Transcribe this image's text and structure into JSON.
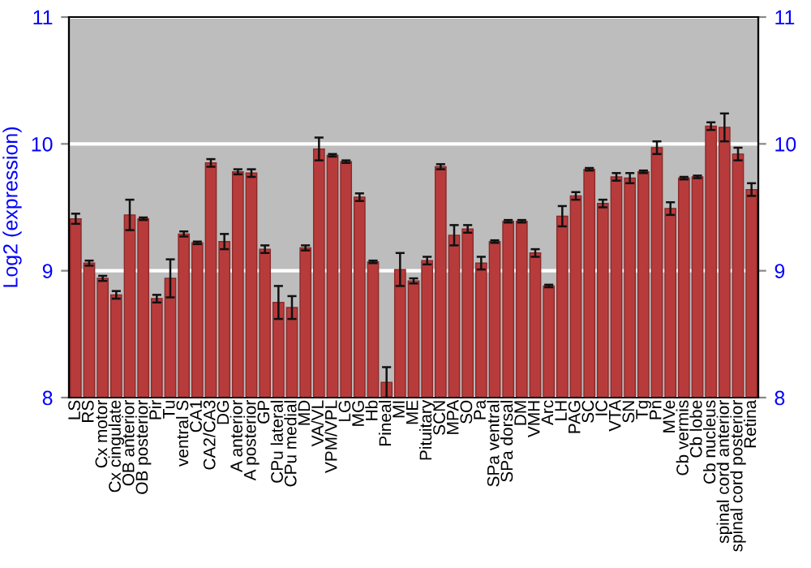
{
  "chart_data": {
    "type": "bar",
    "ylabel": "Log2 (expression)",
    "categories": [
      "LS",
      "RS",
      "Cx motor",
      "Cx cingulate",
      "OB anterior",
      "OB posterior",
      "Pir",
      "Tu",
      "ventral S",
      "CA1",
      "CA2/CA3",
      "DG",
      "A anterior",
      "A posterior",
      "GP",
      "CPu lateral",
      "CPu medial",
      "MD",
      "VA/VL",
      "VPM/VPL",
      "LG",
      "MG",
      "Hb",
      "Pineal",
      "MI",
      "ME",
      "Pituitary",
      "SCN",
      "MPA",
      "SO",
      "Pa",
      "SPa ventral",
      "SPa dorsal",
      "DM",
      "VMH",
      "Arc",
      "LH",
      "PAG",
      "SC",
      "IC",
      "VTA",
      "SN",
      "Tg",
      "Pn",
      "MVe",
      "Cb vermis",
      "Cb lobe",
      "Cb nucleus",
      "spinal cord anterior",
      "spinal cord posterior",
      "Retina"
    ],
    "values": [
      9.41,
      9.06,
      8.94,
      8.81,
      9.44,
      9.41,
      8.78,
      8.94,
      9.29,
      9.22,
      9.85,
      9.23,
      9.78,
      9.77,
      9.17,
      8.75,
      8.71,
      9.18,
      9.96,
      9.91,
      9.86,
      9.58,
      9.07,
      8.12,
      9.01,
      8.92,
      9.08,
      9.82,
      9.28,
      9.33,
      9.06,
      9.23,
      9.39,
      9.39,
      9.14,
      8.88,
      9.43,
      9.59,
      9.8,
      9.53,
      9.74,
      9.73,
      9.78,
      9.97,
      9.49,
      9.73,
      9.74,
      10.14,
      10.13,
      9.92,
      9.64
    ],
    "errors": [
      0.04,
      0.02,
      0.02,
      0.03,
      0.12,
      0.01,
      0.03,
      0.15,
      0.02,
      0.01,
      0.03,
      0.06,
      0.02,
      0.03,
      0.03,
      0.13,
      0.09,
      0.02,
      0.09,
      0.01,
      0.01,
      0.03,
      0.01,
      0.12,
      0.13,
      0.02,
      0.03,
      0.02,
      0.08,
      0.03,
      0.05,
      0.01,
      0.01,
      0.01,
      0.03,
      0.01,
      0.08,
      0.03,
      0.01,
      0.03,
      0.03,
      0.04,
      0.01,
      0.05,
      0.05,
      0.01,
      0.01,
      0.03,
      0.11,
      0.05,
      0.05
    ],
    "color": "#b83b3b",
    "ylim": [
      8,
      11
    ],
    "yticks": [
      8,
      9,
      10,
      11
    ],
    "y2lim": [
      8,
      11
    ],
    "y2ticks": [
      8,
      9,
      10,
      11
    ],
    "grid": "y"
  }
}
